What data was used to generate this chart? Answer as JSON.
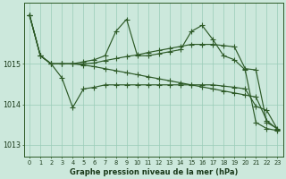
{
  "title": "Graphe pression niveau de la mer (hPa)",
  "background_color": "#cce8dc",
  "grid_color": "#99ccb8",
  "line_color": "#2d5a27",
  "xlim": [
    -0.5,
    23.5
  ],
  "ylim": [
    1012.7,
    1016.5
  ],
  "yticks": [
    1013,
    1014,
    1015
  ],
  "xticks": [
    0,
    1,
    2,
    3,
    4,
    5,
    6,
    7,
    8,
    9,
    10,
    11,
    12,
    13,
    14,
    15,
    16,
    17,
    18,
    19,
    20,
    21,
    22,
    23
  ],
  "line_a": [
    1016.2,
    1015.2,
    1015.0,
    1015.0,
    1015.0,
    1015.05,
    1015.1,
    1015.2,
    1015.8,
    1016.1,
    1015.2,
    1015.2,
    1015.25,
    1015.3,
    1015.35,
    1015.8,
    1015.95,
    1015.6,
    1015.2,
    1015.1,
    1014.85,
    1013.55,
    1013.4,
    1013.35
  ],
  "line_b": [
    1016.2,
    1015.2,
    1015.0,
    1015.0,
    1015.0,
    1015.0,
    1015.02,
    1015.08,
    1015.13,
    1015.18,
    1015.22,
    1015.28,
    1015.33,
    1015.38,
    1015.43,
    1015.48,
    1015.48,
    1015.48,
    1015.45,
    1015.42,
    1014.88,
    1014.85,
    1013.55,
    1013.4
  ],
  "line_c": [
    1016.2,
    1015.2,
    1015.0,
    1015.0,
    1015.0,
    1014.97,
    1014.93,
    1014.88,
    1014.83,
    1014.78,
    1014.73,
    1014.68,
    1014.63,
    1014.58,
    1014.53,
    1014.48,
    1014.43,
    1014.38,
    1014.33,
    1014.28,
    1014.23,
    1014.18,
    1013.6,
    1013.38
  ],
  "line_d": [
    1016.2,
    1015.2,
    1015.0,
    1014.65,
    1013.92,
    1014.38,
    1014.42,
    1014.48,
    1014.48,
    1014.48,
    1014.48,
    1014.48,
    1014.48,
    1014.48,
    1014.48,
    1014.48,
    1014.48,
    1014.48,
    1014.45,
    1014.42,
    1014.38,
    1013.95,
    1013.85,
    1013.38
  ]
}
